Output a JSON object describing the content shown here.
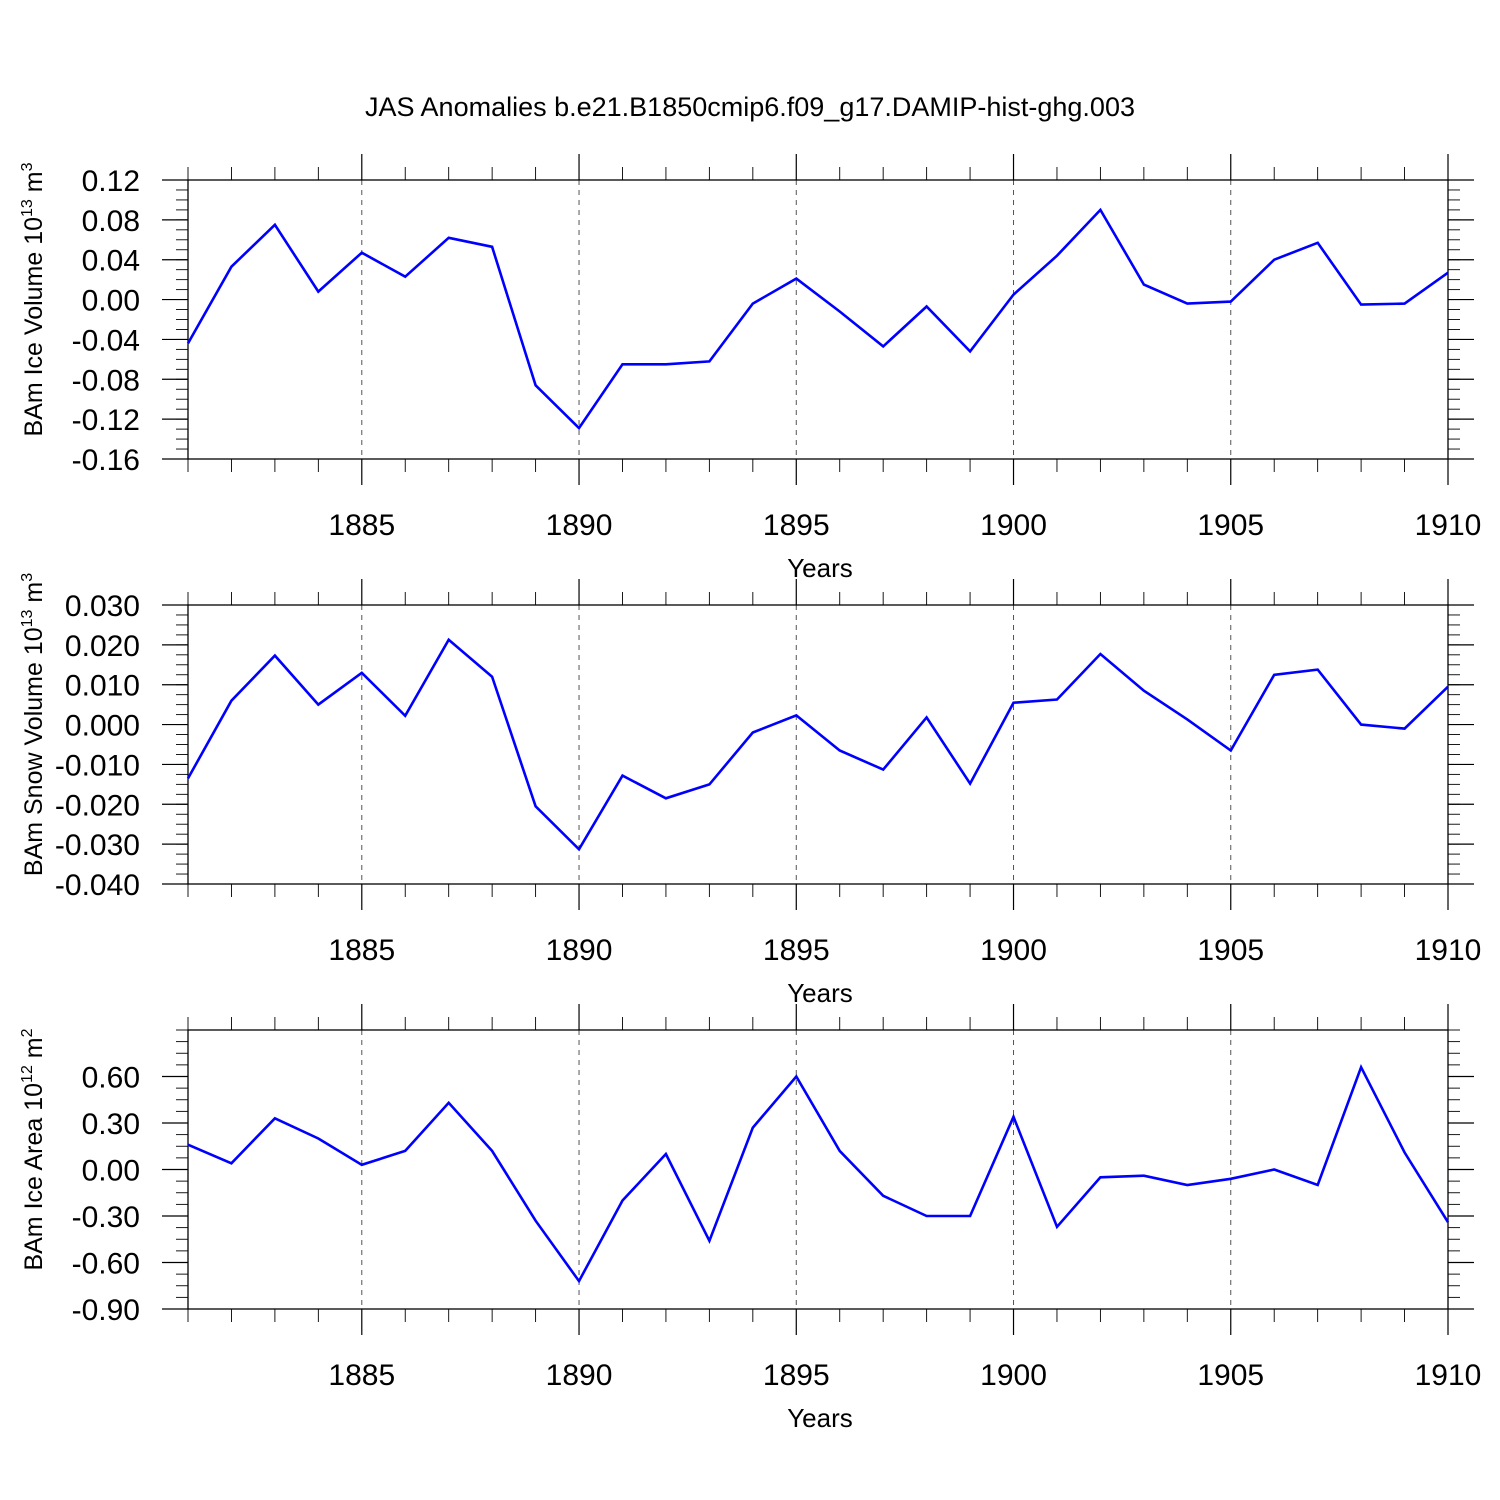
{
  "title": "JAS Anomalies b.e21.B1850cmip6.f09_g17.DAMIP-hist-ghg.003",
  "colors": {
    "line": "#0000ff",
    "grid": "#555555",
    "axis": "#000000"
  },
  "chart_data": [
    {
      "type": "line",
      "ylabel": {
        "base": "BAm Ice Volume 10",
        "exp": "13",
        "unit": " m",
        "unit_exp": "3"
      },
      "xlabel": "Years",
      "xlim": [
        1881,
        1910
      ],
      "ylim": [
        -0.16,
        0.12
      ],
      "yticks": [
        "0.12",
        "0.08",
        "0.04",
        "0.00",
        "-0.04",
        "-0.08",
        "-0.12",
        "-0.16"
      ],
      "ytick_values": [
        0.12,
        0.08,
        0.04,
        0.0,
        -0.04,
        -0.08,
        -0.12,
        -0.16
      ],
      "ymajor_step": 0.04,
      "yminor_step": 0.01,
      "xticks": [
        "1885",
        "1890",
        "1895",
        "1900",
        "1905",
        "1910"
      ],
      "xtick_values": [
        1885,
        1890,
        1895,
        1900,
        1905,
        1910
      ],
      "grid": "dashed vertical at major x ticks",
      "x": [
        1881,
        1882,
        1883,
        1884,
        1885,
        1886,
        1887,
        1888,
        1889,
        1890,
        1891,
        1892,
        1893,
        1894,
        1895,
        1896,
        1897,
        1898,
        1899,
        1900,
        1901,
        1902,
        1903,
        1904,
        1905,
        1906,
        1907,
        1908,
        1909,
        1910
      ],
      "values": [
        -0.044,
        0.033,
        0.075,
        0.008,
        0.047,
        0.023,
        0.062,
        0.053,
        -0.086,
        -0.129,
        -0.065,
        -0.065,
        -0.062,
        -0.004,
        0.021,
        -0.012,
        -0.047,
        -0.007,
        -0.052,
        0.005,
        0.044,
        0.09,
        0.015,
        -0.004,
        -0.002,
        0.04,
        0.057,
        -0.005,
        -0.004,
        0.027
      ]
    },
    {
      "type": "line",
      "ylabel": {
        "base": "BAm Snow Volume 10",
        "exp": "13",
        "unit": " m",
        "unit_exp": "3"
      },
      "xlabel": "Years",
      "xlim": [
        1881,
        1910
      ],
      "ylim": [
        -0.04,
        0.03
      ],
      "yticks": [
        "0.030",
        "0.020",
        "0.010",
        "0.000",
        "-0.010",
        "-0.020",
        "-0.030",
        "-0.040"
      ],
      "ytick_values": [
        0.03,
        0.02,
        0.01,
        0.0,
        -0.01,
        -0.02,
        -0.03,
        -0.04
      ],
      "ymajor_step": 0.01,
      "yminor_step": 0.0025,
      "xticks": [
        "1885",
        "1890",
        "1895",
        "1900",
        "1905",
        "1910"
      ],
      "xtick_values": [
        1885,
        1890,
        1895,
        1900,
        1905,
        1910
      ],
      "grid": "dashed vertical at major x ticks",
      "x": [
        1881,
        1882,
        1883,
        1884,
        1885,
        1886,
        1887,
        1888,
        1889,
        1890,
        1891,
        1892,
        1893,
        1894,
        1895,
        1896,
        1897,
        1898,
        1899,
        1900,
        1901,
        1902,
        1903,
        1904,
        1905,
        1906,
        1907,
        1908,
        1909,
        1910
      ],
      "values": [
        -0.0135,
        0.006,
        0.0173,
        0.005,
        0.013,
        0.0022,
        0.0213,
        0.012,
        -0.0205,
        -0.0313,
        -0.0128,
        -0.0185,
        -0.015,
        -0.002,
        0.0023,
        -0.0065,
        -0.0113,
        0.0018,
        -0.0148,
        0.0055,
        0.0063,
        0.0177,
        0.0085,
        0.0013,
        -0.0065,
        0.0125,
        0.0138,
        0.0,
        -0.001,
        0.0095
      ]
    },
    {
      "type": "line",
      "ylabel": {
        "base": "BAm Ice Area 10",
        "exp": "12",
        "unit": " m",
        "unit_exp": "2"
      },
      "xlabel": "Years",
      "xlim": [
        1881,
        1910
      ],
      "ylim": [
        -0.9,
        0.9
      ],
      "yticks": [
        "0.60",
        "0.30",
        "0.00",
        "-0.30",
        "-0.60",
        "-0.90"
      ],
      "ytick_values": [
        0.6,
        0.3,
        0.0,
        -0.3,
        -0.6,
        -0.9
      ],
      "ymajor_step": 0.3,
      "yminor_step": 0.075,
      "xticks": [
        "1885",
        "1890",
        "1895",
        "1900",
        "1905",
        "1910"
      ],
      "xtick_values": [
        1885,
        1890,
        1895,
        1900,
        1905,
        1910
      ],
      "grid": "dashed vertical at major x ticks",
      "x": [
        1881,
        1882,
        1883,
        1884,
        1885,
        1886,
        1887,
        1888,
        1889,
        1890,
        1891,
        1892,
        1893,
        1894,
        1895,
        1896,
        1897,
        1898,
        1899,
        1900,
        1901,
        1902,
        1903,
        1904,
        1905,
        1906,
        1907,
        1908,
        1909,
        1910
      ],
      "values": [
        0.16,
        0.04,
        0.33,
        0.2,
        0.03,
        0.12,
        0.43,
        0.12,
        -0.33,
        -0.72,
        -0.2,
        0.1,
        -0.46,
        0.27,
        0.6,
        0.12,
        -0.17,
        -0.3,
        -0.3,
        0.34,
        -0.37,
        -0.05,
        -0.04,
        -0.1,
        -0.06,
        0.0,
        -0.1,
        0.66,
        0.11,
        -0.34
      ]
    }
  ]
}
